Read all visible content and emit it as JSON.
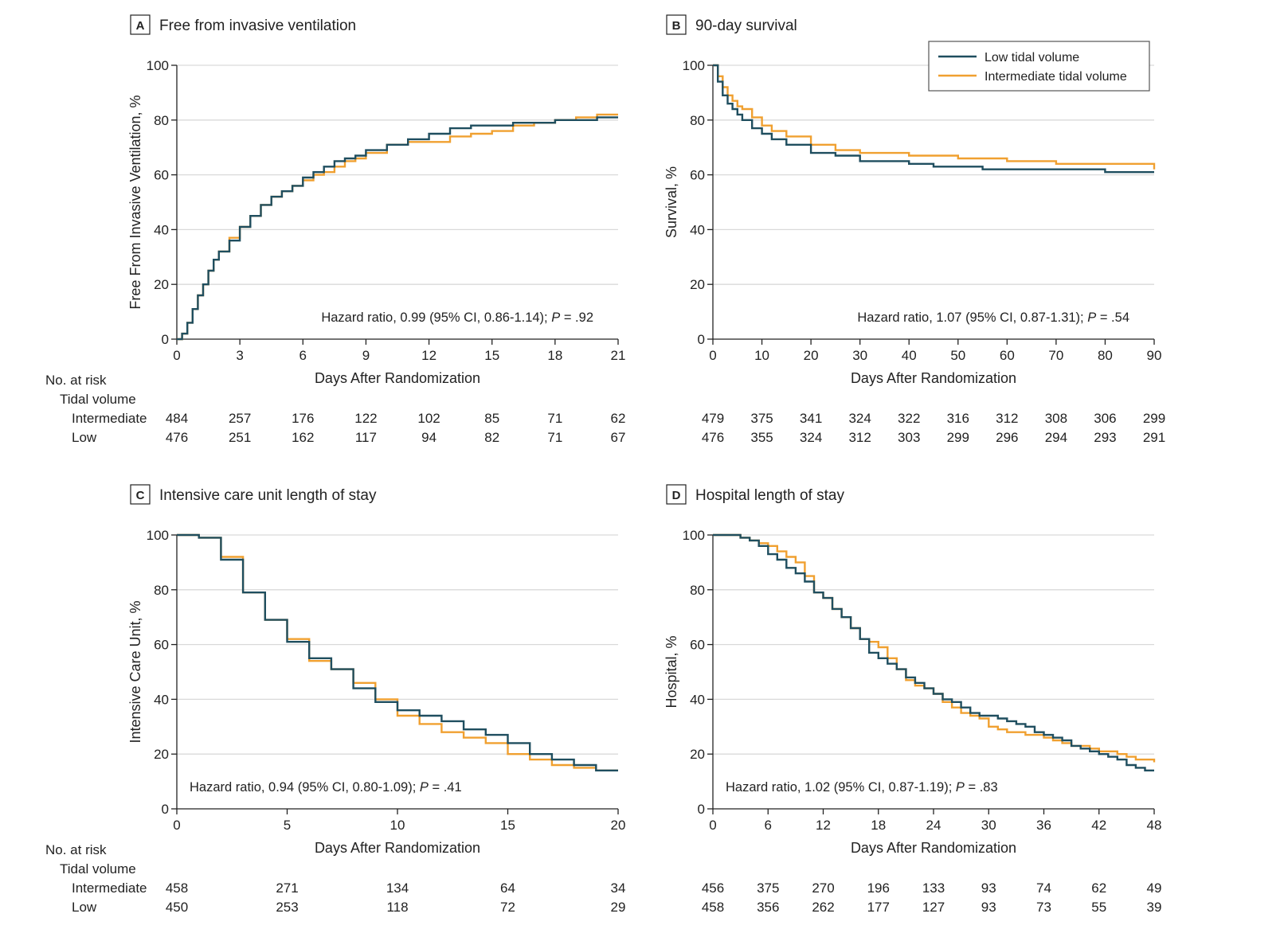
{
  "colors": {
    "low": "#1f4e5f",
    "intermediate": "#f0a030",
    "grid": "#d9d9d9",
    "axis": "#222222"
  },
  "legend": {
    "low": "Low tidal volume",
    "intermediate": "Intermediate tidal volume"
  },
  "risk_labels": {
    "header": "No. at risk",
    "group": "Tidal volume",
    "intermediate": "Intermediate",
    "low": "Low"
  },
  "chart_data": [
    {
      "type": "line",
      "letter": "A",
      "title": "Free from invasive ventilation",
      "xlabel": "Days After Randomization",
      "ylabel": "Free From Invasive Ventilation, %",
      "xlim": [
        0,
        21
      ],
      "ylim": [
        0,
        100
      ],
      "xticks": [
        0,
        3,
        6,
        9,
        12,
        15,
        18,
        21
      ],
      "yticks": [
        0,
        20,
        40,
        60,
        80,
        100
      ],
      "grid": true,
      "hr_text": {
        "before": "Hazard ratio, 0.99 (95% CI, 0.86-1.14); ",
        "p_label": "P",
        "after": " = .92"
      },
      "series": [
        {
          "name": "Low tidal volume",
          "x": [
            0,
            0.25,
            0.5,
            0.75,
            1,
            1.25,
            1.5,
            1.75,
            2,
            2.5,
            3,
            3.5,
            4,
            4.5,
            5,
            5.5,
            6,
            6.5,
            7,
            7.5,
            8,
            8.5,
            9,
            10,
            11,
            12,
            13,
            14,
            15,
            16,
            17,
            18,
            19,
            20,
            21
          ],
          "y": [
            0,
            2,
            6,
            11,
            16,
            20,
            25,
            29,
            32,
            36,
            41,
            45,
            49,
            52,
            54,
            56,
            59,
            61,
            63,
            65,
            66,
            67,
            69,
            71,
            73,
            75,
            77,
            78,
            78,
            79,
            79,
            80,
            80,
            81,
            81
          ]
        },
        {
          "name": "Intermediate tidal volume",
          "x": [
            0,
            0.25,
            0.5,
            0.75,
            1,
            1.25,
            1.5,
            1.75,
            2,
            2.5,
            3,
            3.5,
            4,
            4.5,
            5,
            5.5,
            6,
            6.5,
            7,
            7.5,
            8,
            8.5,
            9,
            10,
            11,
            12,
            13,
            14,
            15,
            16,
            17,
            18,
            19,
            20,
            21
          ],
          "y": [
            0,
            2,
            6,
            11,
            16,
            20,
            25,
            29,
            32,
            37,
            41,
            45,
            49,
            52,
            54,
            56,
            58,
            60,
            61,
            63,
            65,
            66,
            68,
            71,
            72,
            72,
            74,
            75,
            76,
            78,
            79,
            80,
            81,
            82,
            82
          ]
        }
      ],
      "risk": {
        "x": [
          0,
          3,
          6,
          9,
          12,
          15,
          18,
          21
        ],
        "intermediate": [
          "484",
          "257",
          "176",
          "122",
          "102",
          "85",
          "71",
          "62"
        ],
        "low": [
          "476",
          "251",
          "162",
          "117",
          "94",
          "82",
          "71",
          "67"
        ]
      }
    },
    {
      "type": "line",
      "letter": "B",
      "title": "90-day survival",
      "xlabel": "Days After Randomization",
      "ylabel": "Survival, %",
      "xlim": [
        0,
        90
      ],
      "ylim": [
        0,
        100
      ],
      "xticks": [
        0,
        10,
        20,
        30,
        40,
        50,
        60,
        70,
        80,
        90
      ],
      "yticks": [
        0,
        20,
        40,
        60,
        80,
        100
      ],
      "grid": true,
      "legend_position": "top-right",
      "hr_text": {
        "before": "Hazard ratio, 1.07 (95% CI, 0.87-1.31); ",
        "p_label": "P",
        "after": " = .54"
      },
      "series": [
        {
          "name": "Low tidal volume",
          "x": [
            0,
            1,
            2,
            3,
            4,
            5,
            6,
            8,
            10,
            12,
            15,
            20,
            25,
            30,
            35,
            40,
            45,
            50,
            55,
            60,
            70,
            80,
            90
          ],
          "y": [
            100,
            94,
            89,
            86,
            84,
            82,
            80,
            77,
            75,
            73,
            71,
            68,
            67,
            65,
            65,
            64,
            63,
            63,
            62,
            62,
            62,
            61,
            61
          ]
        },
        {
          "name": "Intermediate tidal volume",
          "x": [
            0,
            1,
            2,
            3,
            4,
            5,
            6,
            8,
            10,
            12,
            15,
            20,
            25,
            30,
            35,
            40,
            45,
            50,
            55,
            60,
            70,
            80,
            90
          ],
          "y": [
            100,
            96,
            92,
            89,
            87,
            85,
            84,
            81,
            78,
            76,
            74,
            71,
            69,
            68,
            68,
            67,
            67,
            66,
            66,
            65,
            64,
            64,
            62
          ]
        }
      ],
      "risk": {
        "x": [
          0,
          10,
          20,
          30,
          40,
          50,
          60,
          70,
          80,
          90
        ],
        "intermediate": [
          "479",
          "375",
          "341",
          "324",
          "322",
          "316",
          "312",
          "308",
          "306",
          "299"
        ],
        "low": [
          "476",
          "355",
          "324",
          "312",
          "303",
          "299",
          "296",
          "294",
          "293",
          "291"
        ]
      }
    },
    {
      "type": "line",
      "letter": "C",
      "title": "Intensive care unit length of stay",
      "xlabel": "Days After Randomization",
      "ylabel": "Intensive Care Unit, %",
      "xlim": [
        0,
        20
      ],
      "ylim": [
        0,
        100
      ],
      "xticks": [
        0,
        5,
        10,
        15,
        20
      ],
      "yticks": [
        0,
        20,
        40,
        60,
        80,
        100
      ],
      "grid": true,
      "hr_text": {
        "before": "Hazard ratio, 0.94 (95% CI, 0.80-1.09); ",
        "p_label": "P",
        "after": " = .41"
      },
      "series": [
        {
          "name": "Low tidal volume",
          "x": [
            0,
            1,
            2,
            3,
            4,
            5,
            6,
            7,
            8,
            9,
            10,
            11,
            12,
            13,
            14,
            15,
            16,
            17,
            18,
            19,
            20
          ],
          "y": [
            100,
            99,
            91,
            79,
            69,
            61,
            55,
            51,
            44,
            39,
            36,
            34,
            32,
            29,
            27,
            24,
            20,
            18,
            16,
            14,
            14
          ]
        },
        {
          "name": "Intermediate tidal volume",
          "x": [
            0,
            1,
            2,
            3,
            4,
            5,
            6,
            7,
            8,
            9,
            10,
            11,
            12,
            13,
            14,
            15,
            16,
            17,
            18,
            19,
            20
          ],
          "y": [
            100,
            99,
            92,
            79,
            69,
            62,
            54,
            51,
            46,
            40,
            34,
            31,
            28,
            26,
            24,
            20,
            18,
            16,
            15,
            14,
            14
          ]
        }
      ],
      "risk": {
        "x": [
          0,
          5,
          10,
          15,
          20
        ],
        "intermediate": [
          "458",
          "271",
          "134",
          "64",
          "34"
        ],
        "low": [
          "450",
          "253",
          "118",
          "72",
          "29"
        ]
      }
    },
    {
      "type": "line",
      "letter": "D",
      "title": "Hospital length of stay",
      "xlabel": "Days After Randomization",
      "ylabel": "Hospital, %",
      "xlim": [
        0,
        48
      ],
      "ylim": [
        0,
        100
      ],
      "xticks": [
        0,
        6,
        12,
        18,
        24,
        30,
        36,
        42,
        48
      ],
      "yticks": [
        0,
        20,
        40,
        60,
        80,
        100
      ],
      "grid": true,
      "hr_text": {
        "before": "Hazard ratio, 1.02 (95% CI, 0.87-1.19); ",
        "p_label": "P",
        "after": " = .83"
      },
      "series": [
        {
          "name": "Low tidal volume",
          "x": [
            0,
            1,
            2,
            3,
            4,
            5,
            6,
            7,
            8,
            9,
            10,
            11,
            12,
            13,
            14,
            15,
            16,
            17,
            18,
            19,
            20,
            21,
            22,
            23,
            24,
            25,
            26,
            27,
            28,
            29,
            30,
            31,
            32,
            33,
            34,
            35,
            36,
            37,
            38,
            39,
            40,
            41,
            42,
            43,
            44,
            45,
            46,
            47,
            48
          ],
          "y": [
            100,
            100,
            100,
            99,
            98,
            96,
            93,
            91,
            88,
            86,
            83,
            79,
            77,
            73,
            70,
            66,
            62,
            57,
            55,
            53,
            51,
            48,
            46,
            44,
            42,
            40,
            39,
            37,
            35,
            34,
            34,
            33,
            32,
            31,
            30,
            28,
            27,
            26,
            25,
            23,
            22,
            21,
            20,
            19,
            18,
            16,
            15,
            14,
            14
          ]
        },
        {
          "name": "Intermediate tidal volume",
          "x": [
            0,
            1,
            2,
            3,
            4,
            5,
            6,
            7,
            8,
            9,
            10,
            11,
            12,
            13,
            14,
            15,
            16,
            17,
            18,
            19,
            20,
            21,
            22,
            23,
            24,
            25,
            26,
            27,
            28,
            29,
            30,
            31,
            32,
            33,
            34,
            35,
            36,
            37,
            38,
            39,
            40,
            41,
            42,
            43,
            44,
            45,
            46,
            47,
            48
          ],
          "y": [
            100,
            100,
            100,
            99,
            98,
            97,
            96,
            94,
            92,
            90,
            85,
            79,
            77,
            73,
            70,
            66,
            62,
            61,
            59,
            55,
            51,
            47,
            45,
            44,
            42,
            39,
            37,
            35,
            34,
            33,
            30,
            29,
            28,
            28,
            27,
            27,
            26,
            25,
            24,
            23,
            23,
            22,
            21,
            21,
            20,
            19,
            18,
            18,
            17
          ]
        }
      ],
      "risk": {
        "x": [
          0,
          6,
          12,
          18,
          24,
          30,
          36,
          42,
          48
        ],
        "intermediate": [
          "456",
          "375",
          "270",
          "196",
          "133",
          "93",
          "74",
          "62",
          "49"
        ],
        "low": [
          "458",
          "356",
          "262",
          "177",
          "127",
          "93",
          "73",
          "55",
          "39"
        ]
      }
    }
  ]
}
